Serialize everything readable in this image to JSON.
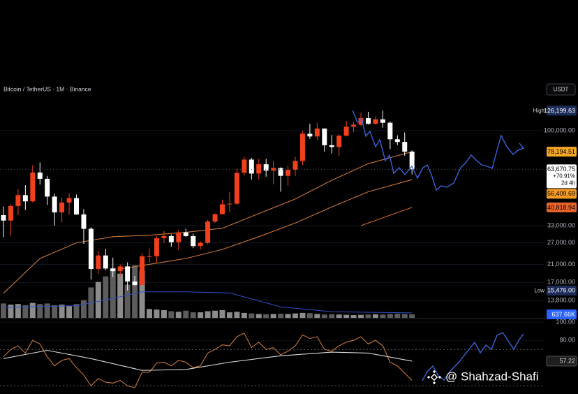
{
  "chart_data": {
    "type": "candlestick",
    "title": "Bitcoin / TetherUS · 1M · Binance",
    "currency": "USDT",
    "log_scale": true,
    "grid": true,
    "up_color": "#f0401e",
    "down_color": "#ffffff",
    "ylim": [
      11250,
      175400
    ],
    "yticks": [
      {
        "value": 100000,
        "label": "100,000.00"
      },
      {
        "value": 33000,
        "label": "33,000.00"
      },
      {
        "value": 27000,
        "label": "27,000.00"
      },
      {
        "value": 21000,
        "label": "21,000.00"
      },
      {
        "value": 17000,
        "label": "17,000.00"
      },
      {
        "value": 13800,
        "label": "13,800.00"
      }
    ],
    "candles": {
      "open": [
        37300,
        35000,
        41500,
        47100,
        43800,
        61300,
        57000,
        46300,
        38500,
        43200,
        45500,
        37600,
        31800,
        19900,
        23300,
        20000,
        19400,
        20500,
        17200,
        16500,
        23100,
        23100,
        28500,
        29200,
        27200,
        30500,
        29200,
        26000,
        27000,
        34600,
        37700,
        42300,
        42600,
        61100,
        71300,
        60600,
        67500,
        62700,
        64600,
        59000,
        63300,
        70200,
        96400,
        93400,
        102400,
        84300,
        82500,
        94200,
        104600,
        107100,
        115700,
        108200,
        114000,
        109600,
        90400,
        87600,
        78200
      ],
      "high": [
        41300,
        42400,
        50500,
        52900,
        66900,
        69000,
        59000,
        47900,
        45800,
        48200,
        47400,
        40000,
        32400,
        24600,
        25200,
        22700,
        21000,
        21500,
        18300,
        23900,
        25300,
        29200,
        31000,
        29800,
        31400,
        31800,
        30100,
        27500,
        35300,
        38000,
        44700,
        48900,
        64000,
        73800,
        72800,
        71900,
        72000,
        70000,
        65100,
        66500,
        73600,
        99600,
        108300,
        109600,
        102500,
        95000,
        95800,
        112000,
        110500,
        123200,
        124500,
        117900,
        126199.63,
        111200,
        94600,
        97900,
        79400
      ],
      "low": [
        28800,
        29300,
        37300,
        39600,
        43300,
        53300,
        42000,
        33000,
        34300,
        37500,
        37400,
        26700,
        17600,
        18800,
        19600,
        18100,
        18200,
        15476,
        16300,
        16500,
        21400,
        21400,
        26900,
        25800,
        24800,
        28900,
        25400,
        24900,
        26600,
        34100,
        37600,
        38600,
        41900,
        59000,
        56500,
        56600,
        58400,
        53500,
        49000,
        52600,
        58900,
        66800,
        90800,
        89200,
        78200,
        76600,
        74500,
        93400,
        98200,
        105300,
        107300,
        107300,
        103500,
        80600,
        84400,
        74600,
        60000
      ],
      "close": [
        35000,
        41500,
        47100,
        43800,
        61300,
        57000,
        46300,
        38500,
        43200,
        45500,
        37600,
        31800,
        19900,
        23300,
        20000,
        19400,
        20500,
        17200,
        16500,
        23100,
        23100,
        28500,
        29200,
        27200,
        30500,
        29200,
        26000,
        27000,
        34600,
        37700,
        42300,
        42600,
        61100,
        71300,
        60600,
        67500,
        62700,
        64600,
        59000,
        63300,
        70200,
        96400,
        93400,
        102400,
        84300,
        82500,
        94200,
        104600,
        107100,
        115700,
        108200,
        114000,
        109600,
        90400,
        87600,
        78200,
        63670.75
      ]
    },
    "moving_averages": [
      {
        "color": "#c8773a",
        "x": [
          0,
          5,
          10,
          15,
          20,
          25,
          30,
          35,
          40,
          45,
          50,
          56
        ],
        "values": [
          15000,
          22500,
          27000,
          29000,
          29500,
          30500,
          32000,
          38000,
          45000,
          56000,
          68000,
          78194.51
        ]
      },
      {
        "color": "#c8773a",
        "x": [
          16,
          20,
          25,
          30,
          35,
          40,
          45,
          50,
          56
        ],
        "values": [
          19900,
          21000,
          22500,
          25000,
          29000,
          34000,
          41000,
          49000,
          56409.69
        ]
      },
      {
        "color": "#d0652a",
        "x": [
          49,
          56
        ],
        "values": [
          33000,
          40818.94
        ]
      }
    ],
    "price_labels": [
      {
        "tag": "High",
        "value": 126199.63,
        "label": "126,199.63",
        "color": "#1c2c5a",
        "text_color": "#ffffff"
      },
      {
        "value": 78194.51,
        "label": "78,194.51",
        "color": "#f5a623",
        "text_color": "#000000"
      },
      {
        "value": 63670.75,
        "label": "63,670.75",
        "color": "#ffffff",
        "text_color": "#000000",
        "lines": [
          "+70.91%",
          "2d 4h"
        ]
      },
      {
        "value": 56409.69,
        "label": "56,409.69",
        "color": "#f59a23",
        "text_color": "#000000"
      },
      {
        "value": 40818.94,
        "label": "40,818.94",
        "color": "#e8642a",
        "text_color": "#000000"
      },
      {
        "tag": "Low",
        "value": 15476,
        "label": "15,476.00",
        "color": "#1c2c5a",
        "text_color": "#ffffff"
      }
    ],
    "volume": {
      "ylim": [
        0,
        12000
      ],
      "up_color": "#8c8c8c",
      "down_color": "#5c5c5c",
      "values": [
        2600,
        2400,
        2500,
        2300,
        2700,
        2500,
        2600,
        2300,
        2400,
        2200,
        2500,
        3200,
        5500,
        6500,
        7500,
        9000,
        8000,
        6000,
        9500,
        8500,
        1600,
        1500,
        1400,
        1200,
        1100,
        1300,
        1000,
        1000,
        1200,
        1300,
        1400,
        1000,
        1100,
        900,
        800,
        700,
        650,
        700,
        750,
        700,
        800,
        900,
        850,
        700,
        600,
        650,
        600,
        550,
        500,
        550,
        600,
        650,
        600,
        700,
        750,
        700,
        637.66
      ],
      "last_label": {
        "value": 637.66,
        "label": "637.66K",
        "color": "#2962ff"
      },
      "ma": {
        "color": "#2f4fc9",
        "x": [
          0,
          10,
          15,
          19,
          25,
          31,
          38,
          45,
          56
        ],
        "values": [
          1900,
          2200,
          3500,
          4700,
          4700,
          4500,
          2000,
          1100,
          900
        ]
      }
    },
    "rsi": {
      "color": "#c8773a",
      "ylim": [
        21,
        104
      ],
      "yticks": [
        {
          "value": 100,
          "label": "100.00"
        },
        {
          "value": 80,
          "label": "80.00"
        }
      ],
      "bands": [
        70,
        30
      ],
      "values": [
        62,
        70,
        74,
        66,
        80,
        76,
        62,
        52,
        58,
        60,
        50,
        42,
        30,
        38,
        34,
        33,
        36,
        30,
        28,
        45,
        45,
        55,
        56,
        52,
        58,
        56,
        50,
        52,
        66,
        70,
        75,
        74,
        84,
        88,
        72,
        78,
        70,
        72,
        64,
        68,
        74,
        86,
        82,
        84,
        70,
        68,
        74,
        78,
        80,
        84,
        76,
        80,
        74,
        56,
        52,
        44,
        36
      ],
      "signal": {
        "color": "#d9d9d9",
        "x": [
          0,
          6,
          12,
          19,
          25,
          31,
          38,
          45,
          50,
          56
        ],
        "values": [
          60,
          69,
          60,
          47,
          48,
          56,
          63,
          67,
          66,
          57.22
        ]
      },
      "signal_label": {
        "value": 57.22,
        "label": "57.22"
      }
    },
    "watermark": "@ Shahzad-Shafi"
  }
}
